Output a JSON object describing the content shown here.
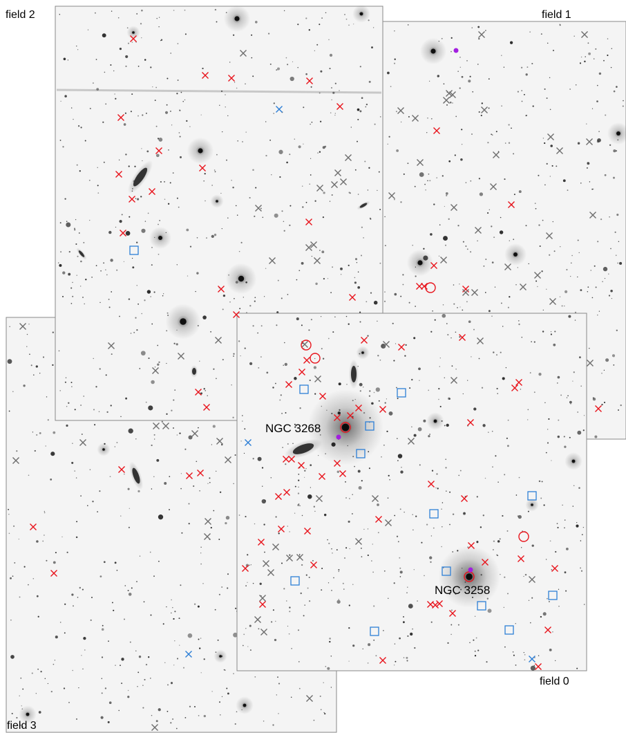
{
  "figure": {
    "field_labels": {
      "field0": "field 0",
      "field1": "field 1",
      "field2": "field 2",
      "field3": "field 3"
    },
    "galaxy_labels": {
      "ngc3268": "NGC 3268",
      "ngc3258": "NGC 3258"
    },
    "colors": {
      "background": "#ffffff",
      "field_bg": "#f4f4f4",
      "field_border": "#888888",
      "marker_red": "#e8141c",
      "marker_grey": "#6e6e6e",
      "marker_blue": "#2d7fd6",
      "marker_purple": "#a21fe0",
      "star_dark": "#1a1a1a"
    },
    "marker_legend_meaning": {
      "red_cross": "red-x-marker",
      "grey_cross": "grey-x-marker",
      "blue_cross": "blue-x-marker",
      "blue_square": "blue-square-marker",
      "red_circle": "red-circle-marker",
      "purple_dot": "purple-dot-marker"
    }
  }
}
